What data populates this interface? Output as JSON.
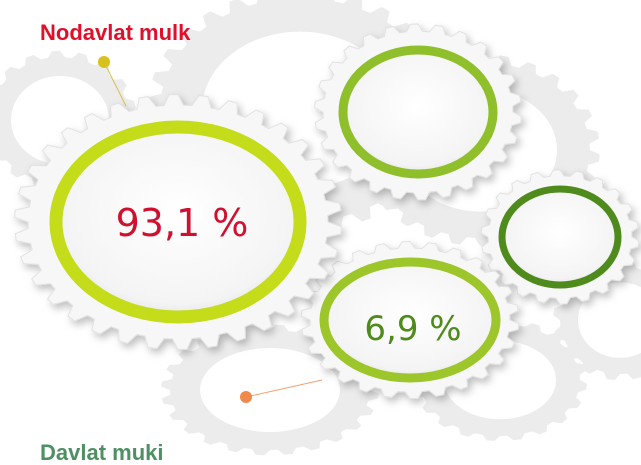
{
  "items": [
    {
      "label": "Nodavlat mulk",
      "value": "93,1 %"
    },
    {
      "label": "Davlat muki",
      "value": "6,9 %"
    }
  ]
}
